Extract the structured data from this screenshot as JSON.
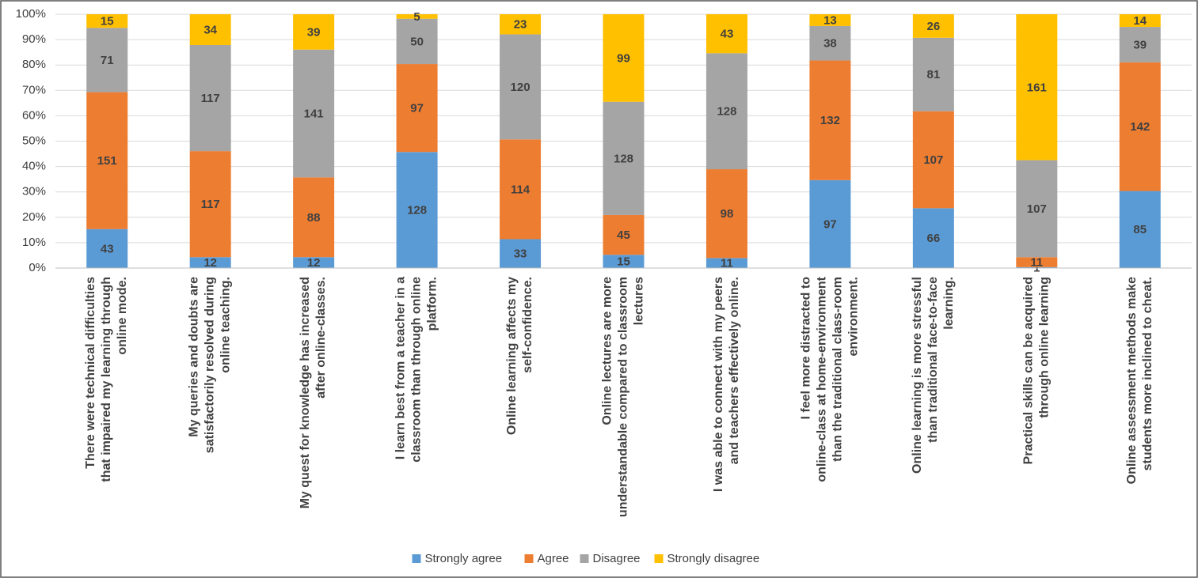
{
  "chart_data": {
    "type": "bar",
    "stacking": "percent",
    "grid": true,
    "categories": [
      "There were technical difficulties that impaired my learning through online mode.",
      "My queries and doubts are satisfactorily resolved during online teaching.",
      "My quest for knowledge has increased after online-classes.",
      "I learn best from a teacher in a classroom than through online platform.",
      "Online learning affects my self-confidence.",
      "Online lectures are more understandable compared to classroom lectures",
      "I was able to connect with my peers and teachers effectively online.",
      "I feel more distracted to online-class at home-environment than the traditional class-room environment.",
      "Online learning is more stressful than traditional face-to-face learning.",
      "Practical skills can be acquired through online learning",
      "Online assessment methods make students more inclined to cheat."
    ],
    "series": [
      {
        "name": "Strongly agree",
        "color": "#5b9bd5",
        "values": [
          43,
          12,
          12,
          128,
          33,
          15,
          11,
          97,
          66,
          1,
          85
        ]
      },
      {
        "name": "Agree",
        "color": "#ed7d31",
        "values": [
          151,
          117,
          88,
          97,
          114,
          45,
          98,
          132,
          107,
          11,
          142
        ]
      },
      {
        "name": "Disagree",
        "color": "#a5a5a5",
        "values": [
          71,
          117,
          141,
          50,
          120,
          128,
          128,
          38,
          81,
          107,
          39
        ]
      },
      {
        "name": "Strongly disagree",
        "color": "#ffc000",
        "values": [
          15,
          34,
          39,
          5,
          23,
          99,
          43,
          13,
          26,
          161,
          14
        ]
      }
    ],
    "ylim": [
      0,
      100
    ],
    "yticks": [
      {
        "value": 0,
        "label": "0%"
      },
      {
        "value": 10,
        "label": "10%"
      },
      {
        "value": 20,
        "label": "20%"
      },
      {
        "value": 30,
        "label": "30%"
      },
      {
        "value": 40,
        "label": "40%"
      },
      {
        "value": 50,
        "label": "50%"
      },
      {
        "value": 60,
        "label": "60%"
      },
      {
        "value": 70,
        "label": "70%"
      },
      {
        "value": 80,
        "label": "80%"
      },
      {
        "value": 90,
        "label": "90%"
      },
      {
        "value": 100,
        "label": "100%"
      }
    ],
    "legend": "bottom"
  }
}
